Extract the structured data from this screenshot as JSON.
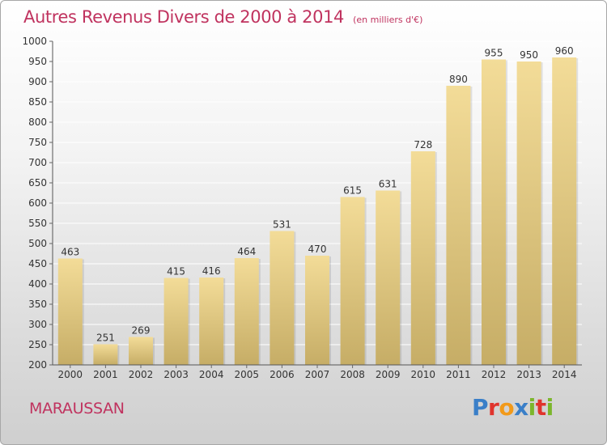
{
  "header": {
    "title": "Autres Revenus Divers de 2000 à 2014",
    "subtitle": "(en milliers d'€)"
  },
  "footer": {
    "commune": "MARAUSSAN",
    "brand": "Proxiti",
    "brand_colors": [
      "#3a7fc8",
      "#e0342d",
      "#f29a1a",
      "#3a7fc8",
      "#7cb62c",
      "#e0342d",
      "#7cb62c"
    ]
  },
  "chart_data": {
    "type": "bar",
    "title": "Autres Revenus Divers de 2000 à 2014",
    "subtitle": "(en milliers d'€)",
    "categories": [
      "2000",
      "2001",
      "2002",
      "2003",
      "2004",
      "2005",
      "2006",
      "2007",
      "2008",
      "2009",
      "2010",
      "2011",
      "2012",
      "2013",
      "2014"
    ],
    "values": [
      463,
      251,
      269,
      415,
      416,
      464,
      531,
      470,
      615,
      631,
      728,
      890,
      955,
      950,
      960
    ],
    "ylim": [
      200,
      1000
    ],
    "yticks": [
      200,
      250,
      300,
      350,
      400,
      450,
      500,
      550,
      600,
      650,
      700,
      750,
      800,
      850,
      900,
      950,
      1000
    ],
    "grid": true,
    "data_labels": true,
    "colors": {
      "bar_top": "#f3dc98",
      "bar_bottom": "#c6ad66",
      "grid": "#ffffff",
      "text": "#333333"
    }
  }
}
